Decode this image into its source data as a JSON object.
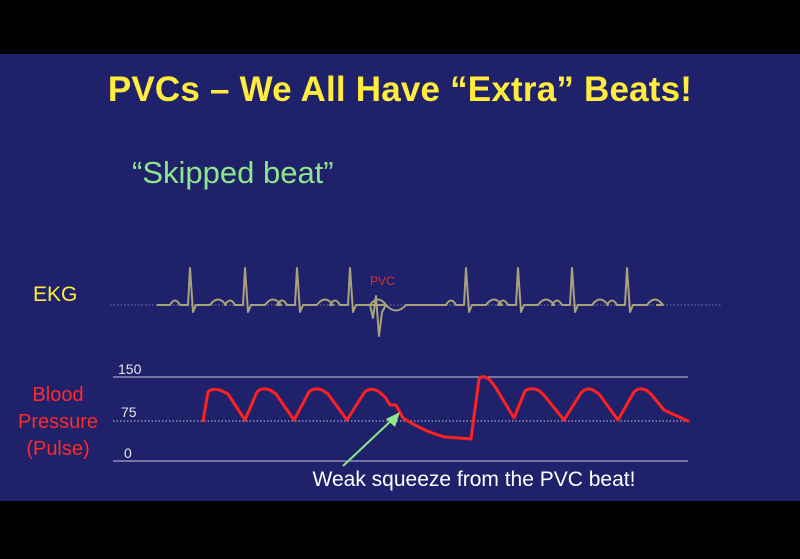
{
  "slide": {
    "title": "PVCs – We All Have “Extra” Beats!",
    "subtitle": "“Skipped beat”",
    "ekg_label": "EKG",
    "pvc_label": "PVC",
    "bp_label_lines": [
      "Blood",
      "Pressure",
      "(Pulse)"
    ],
    "bp_ticks": [
      "150",
      "75",
      "0"
    ],
    "caption": "Weak squeeze from the PVC beat!"
  },
  "colors": {
    "background": "#1f216b",
    "title": "#ffec3d",
    "subtitle": "#8fe58a",
    "ekg_trace": "#a9a27a",
    "pvc_label": "#d8332a",
    "bp_trace": "#ff2020",
    "arrow": "#8fe58a",
    "caption": "#ffffff"
  }
}
